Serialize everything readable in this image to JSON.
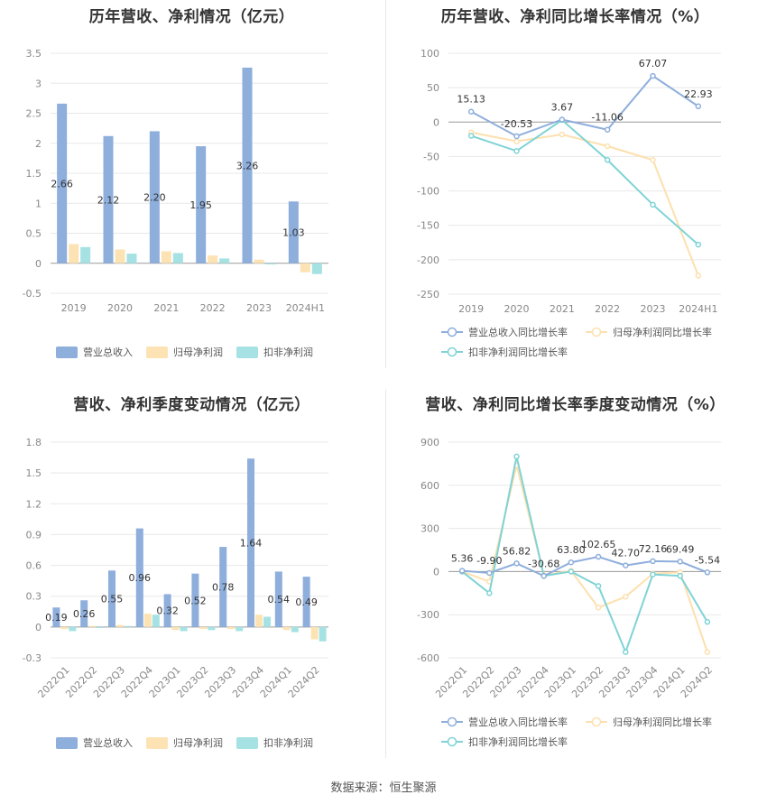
{
  "colors": {
    "revenue": "#8eaedc",
    "parent_profit": "#fde3b4",
    "deducted_profit": "#a6e2e3",
    "revenue_line": "#8eaedc",
    "parent_line": "#fde0ae",
    "deducted_line": "#7fd3d6",
    "grid": "#e8e8e8"
  },
  "source_text": "数据来源：恒生聚源",
  "legend": {
    "revenue": "营业总收入",
    "parent_profit": "归母净利润",
    "deducted_profit": "扣非净利润",
    "revenue_yoy": "营业总收入同比增长率",
    "parent_yoy": "归母净利润同比增长率",
    "deducted_yoy": "扣非净利润同比增长率"
  },
  "chart_data": [
    {
      "id": "annual_amount",
      "type": "bar",
      "title": "历年营收、净利情况（亿元）",
      "categories": [
        "2019",
        "2020",
        "2021",
        "2022",
        "2023",
        "2024H1"
      ],
      "ylim": [
        -0.5,
        3.5
      ],
      "yticks": [
        -0.5,
        0,
        0.5,
        1,
        1.5,
        2,
        2.5,
        3,
        3.5
      ],
      "ytick_labels": [
        "-0.5",
        "0",
        "0.5",
        "1",
        "1.5",
        "2",
        "2.5",
        "3",
        "3.5"
      ],
      "series": [
        {
          "name": "营业总收入",
          "values": [
            2.66,
            2.12,
            2.2,
            1.95,
            3.26,
            1.03
          ],
          "labels": [
            "2.66",
            "2.12",
            "2.20",
            "1.95",
            "3.26",
            "1.03"
          ]
        },
        {
          "name": "归母净利润",
          "values": [
            0.32,
            0.23,
            0.2,
            0.13,
            0.06,
            -0.15
          ]
        },
        {
          "name": "扣非净利润",
          "values": [
            0.27,
            0.16,
            0.17,
            0.08,
            -0.02,
            -0.18
          ]
        }
      ],
      "grid": true,
      "legend_position": "bottom"
    },
    {
      "id": "annual_growth",
      "type": "line",
      "title": "历年营收、净利同比增长率情况（%）",
      "categories": [
        "2019",
        "2020",
        "2021",
        "2022",
        "2023",
        "2024H1"
      ],
      "ylim": [
        -250,
        100
      ],
      "yticks": [
        -250,
        -200,
        -150,
        -100,
        -50,
        0,
        50,
        100
      ],
      "ytick_labels": [
        "-250",
        "-200",
        "-150",
        "-100",
        "-50",
        "0",
        "50",
        "100"
      ],
      "series": [
        {
          "name": "营业总收入同比增长率",
          "values": [
            15.13,
            -20.53,
            3.67,
            -11.06,
            67.07,
            22.93
          ],
          "labels": [
            "15.13",
            "-20.53",
            "3.67",
            "-11.06",
            "67.07",
            "22.93"
          ]
        },
        {
          "name": "归母净利润同比增长率",
          "values": [
            -15,
            -28,
            -18,
            -35,
            -55,
            -223
          ]
        },
        {
          "name": "扣非净利润同比增长率",
          "values": [
            -20,
            -42,
            3,
            -55,
            -120,
            -178
          ]
        }
      ],
      "grid": true,
      "legend_position": "bottom"
    },
    {
      "id": "quarterly_amount",
      "type": "bar",
      "title": "营收、净利季度变动情况（亿元）",
      "categories": [
        "2022Q1",
        "2022Q2",
        "2022Q3",
        "2022Q4",
        "2023Q1",
        "2023Q2",
        "2023Q3",
        "2023Q4",
        "2024Q1",
        "2024Q2"
      ],
      "ylim": [
        -0.3,
        1.8
      ],
      "yticks": [
        -0.3,
        0,
        0.3,
        0.6,
        0.9,
        1.2,
        1.5,
        1.8
      ],
      "ytick_labels": [
        "-0.3",
        "0",
        "0.3",
        "0.6",
        "0.9",
        "1.2",
        "1.5",
        "1.8"
      ],
      "series": [
        {
          "name": "营业总收入",
          "values": [
            0.19,
            0.26,
            0.55,
            0.96,
            0.32,
            0.52,
            0.78,
            1.64,
            0.54,
            0.49
          ],
          "labels": [
            "0.19",
            "0.26",
            "0.55",
            "0.96",
            "0.32",
            "0.52",
            "0.78",
            "1.64",
            "0.54",
            "0.49"
          ]
        },
        {
          "name": "归母净利润",
          "values": [
            -0.02,
            0.01,
            0.02,
            0.13,
            -0.03,
            -0.02,
            -0.02,
            0.12,
            -0.03,
            -0.12
          ]
        },
        {
          "name": "扣非净利润",
          "values": [
            -0.04,
            -0.01,
            0.01,
            0.12,
            -0.04,
            -0.03,
            -0.04,
            0.1,
            -0.05,
            -0.14
          ]
        }
      ],
      "grid": true,
      "legend_position": "bottom"
    },
    {
      "id": "quarterly_growth",
      "type": "line",
      "title": "营收、净利同比增长率季度变动情况（%）",
      "categories": [
        "2022Q1",
        "2022Q2",
        "2022Q3",
        "2022Q4",
        "2023Q1",
        "2023Q2",
        "2023Q3",
        "2023Q4",
        "2024Q1",
        "2024Q2"
      ],
      "ylim": [
        -600,
        900
      ],
      "yticks": [
        -600,
        -300,
        0,
        300,
        600,
        900
      ],
      "ytick_labels": [
        "-600",
        "-300",
        "0",
        "300",
        "600",
        "900"
      ],
      "series": [
        {
          "name": "营业总收入同比增长率",
          "values": [
            5.36,
            -9.9,
            56.82,
            -30.68,
            63.8,
            102.65,
            42.7,
            72.16,
            69.49,
            -5.54
          ],
          "labels": [
            "5.36",
            "-9.90",
            "56.82",
            "-30.68",
            "63.80",
            "102.65",
            "42.70",
            "72.16",
            "69.49",
            "-5.54"
          ]
        },
        {
          "name": "归母净利润同比增长率",
          "values": [
            0,
            -70,
            740,
            -25,
            5,
            -250,
            -175,
            -15,
            -5,
            -560
          ]
        },
        {
          "name": "扣非净利润同比增长率",
          "values": [
            0,
            -150,
            800,
            -30,
            0,
            -100,
            -560,
            -20,
            -30,
            -350
          ]
        }
      ],
      "grid": true,
      "legend_position": "bottom"
    }
  ]
}
